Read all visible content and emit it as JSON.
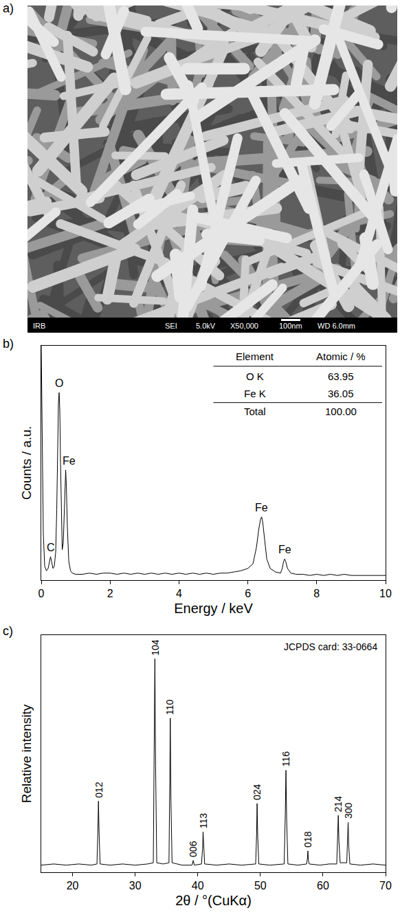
{
  "image_panel": {
    "panel": "a)",
    "type": "image",
    "info_bar": [
      "IRB",
      "SEI",
      "5.0kV",
      "X50,000",
      "100nm",
      "WD 6.0mm"
    ]
  },
  "chart_data": [
    {
      "panel": "b)",
      "type": "line",
      "x_label": "Energy / keV",
      "y_label": "Counts / a.u.",
      "color": "#000000",
      "x": [
        0,
        0.03,
        0.06,
        0.1,
        0.15,
        0.2,
        0.24,
        0.27,
        0.3,
        0.34,
        0.38,
        0.42,
        0.45,
        0.48,
        0.5,
        0.52,
        0.54,
        0.56,
        0.58,
        0.61,
        0.64,
        0.67,
        0.69,
        0.71,
        0.73,
        0.76,
        0.8,
        0.85,
        0.9,
        1.0,
        1.2,
        1.4,
        1.6,
        1.8,
        2.0,
        2.2,
        2.4,
        2.6,
        2.8,
        3.0,
        3.2,
        3.4,
        3.6,
        3.8,
        4.0,
        4.2,
        4.4,
        4.6,
        4.8,
        5.0,
        5.2,
        5.4,
        5.6,
        5.8,
        6.0,
        6.15,
        6.25,
        6.32,
        6.37,
        6.4,
        6.43,
        6.48,
        6.55,
        6.65,
        6.8,
        6.95,
        7.0,
        7.04,
        7.07,
        7.1,
        7.15,
        7.25,
        7.4,
        7.6,
        7.8,
        8.0,
        8.2,
        8.4,
        8.6,
        8.8,
        9.0,
        9.2,
        9.4,
        9.6,
        9.8,
        10
      ],
      "values": [
        100,
        60,
        20,
        6,
        4,
        5,
        8,
        10,
        8,
        5,
        6,
        12,
        30,
        62,
        76,
        80,
        72,
        50,
        30,
        13,
        16,
        30,
        43,
        47,
        40,
        22,
        8,
        4,
        3,
        2.5,
        2.5,
        3,
        2.5,
        3,
        3,
        2.5,
        3,
        2.5,
        3,
        2.5,
        3,
        2.5,
        3,
        2.5,
        3,
        2.5,
        3,
        2.5,
        3,
        2.5,
        3,
        3,
        3.5,
        4,
        5,
        7,
        14,
        22,
        26,
        27,
        25,
        18,
        9,
        5,
        3.5,
        3,
        5,
        8,
        9,
        8,
        5,
        3,
        2.5,
        2.5,
        2,
        2.5,
        2,
        2.5,
        2,
        2.5,
        2,
        2,
        2,
        2,
        2,
        2
      ],
      "xlim": [
        0,
        10
      ],
      "xticks": [
        0,
        2,
        4,
        6,
        8,
        10
      ],
      "ylim": [
        0,
        100
      ],
      "tick_labels": "x",
      "grid": false,
      "annotations": [
        {
          "text": "C",
          "x": 0.28,
          "y": 10
        },
        {
          "text": "O",
          "x": 0.52,
          "y": 80
        },
        {
          "text": "Fe",
          "x": 0.8,
          "y": 47
        },
        {
          "text": "Fe",
          "x": 6.4,
          "y": 27
        },
        {
          "text": "Fe",
          "x": 7.07,
          "y": 9
        }
      ],
      "table": {
        "header": [
          "Element",
          "Atomic / %"
        ],
        "rows": [
          [
            "O K",
            "63.95"
          ],
          [
            "Fe K",
            "36.05"
          ],
          [
            "Total",
            "100.00"
          ]
        ]
      }
    },
    {
      "panel": "c)",
      "type": "line",
      "x_label": "2θ / °(CuKα)",
      "y_label": "Relative intensity",
      "color": "#000000",
      "inset_text": "JCPDS card: 33-0664",
      "x": [
        15,
        17,
        19,
        21,
        23,
        23.9,
        24.05,
        24.14,
        24.25,
        24.4,
        26,
        28,
        30,
        32,
        32.9,
        33.05,
        33.15,
        33.27,
        33.45,
        34.5,
        35.4,
        35.52,
        35.61,
        35.72,
        35.9,
        37.5,
        39.1,
        39.28,
        39.45,
        40.6,
        40.77,
        40.85,
        40.95,
        41.1,
        43,
        45,
        47,
        49.25,
        49.4,
        49.48,
        49.58,
        49.75,
        51.5,
        53.8,
        53.98,
        54.09,
        54.2,
        54.4,
        56,
        57.4,
        57.52,
        57.59,
        57.68,
        57.8,
        59.5,
        61,
        62.2,
        62.36,
        62.45,
        62.55,
        62.75,
        63.8,
        63.93,
        64.02,
        64.12,
        64.3,
        66,
        68,
        70
      ],
      "values": [
        3,
        3.5,
        3,
        3.5,
        3,
        3.5,
        18,
        30,
        16,
        3.5,
        3,
        3.5,
        3,
        3.5,
        4,
        50,
        90,
        45,
        4,
        3.5,
        4,
        35,
        65,
        30,
        4,
        3,
        3,
        5,
        3,
        3.5,
        10,
        17,
        9,
        3.5,
        3,
        3.5,
        3,
        3.5,
        16,
        29,
        15,
        3.5,
        3,
        3.5,
        24,
        43,
        22,
        3.5,
        3,
        3.5,
        6,
        9,
        5,
        3.5,
        3,
        3.5,
        3.5,
        14,
        24,
        13,
        4,
        4,
        12,
        21,
        11,
        3.5,
        3,
        3.5,
        3
      ],
      "xlim": [
        15,
        70
      ],
      "xticks": [
        20,
        30,
        40,
        50,
        60,
        70
      ],
      "ylim": [
        0,
        100
      ],
      "tick_labels": "x",
      "grid": false,
      "annotations": [
        {
          "text": "012",
          "x": 24.14,
          "y": 30
        },
        {
          "text": "104",
          "x": 33.15,
          "y": 90
        },
        {
          "text": "110",
          "x": 35.61,
          "y": 65
        },
        {
          "text": "006",
          "x": 39.28,
          "y": 5
        },
        {
          "text": "113",
          "x": 40.85,
          "y": 17
        },
        {
          "text": "024",
          "x": 49.48,
          "y": 29
        },
        {
          "text": "116",
          "x": 54.09,
          "y": 43
        },
        {
          "text": "018",
          "x": 57.59,
          "y": 9
        },
        {
          "text": "214",
          "x": 62.45,
          "y": 24
        },
        {
          "text": "300",
          "x": 64.02,
          "y": 21
        }
      ]
    }
  ]
}
